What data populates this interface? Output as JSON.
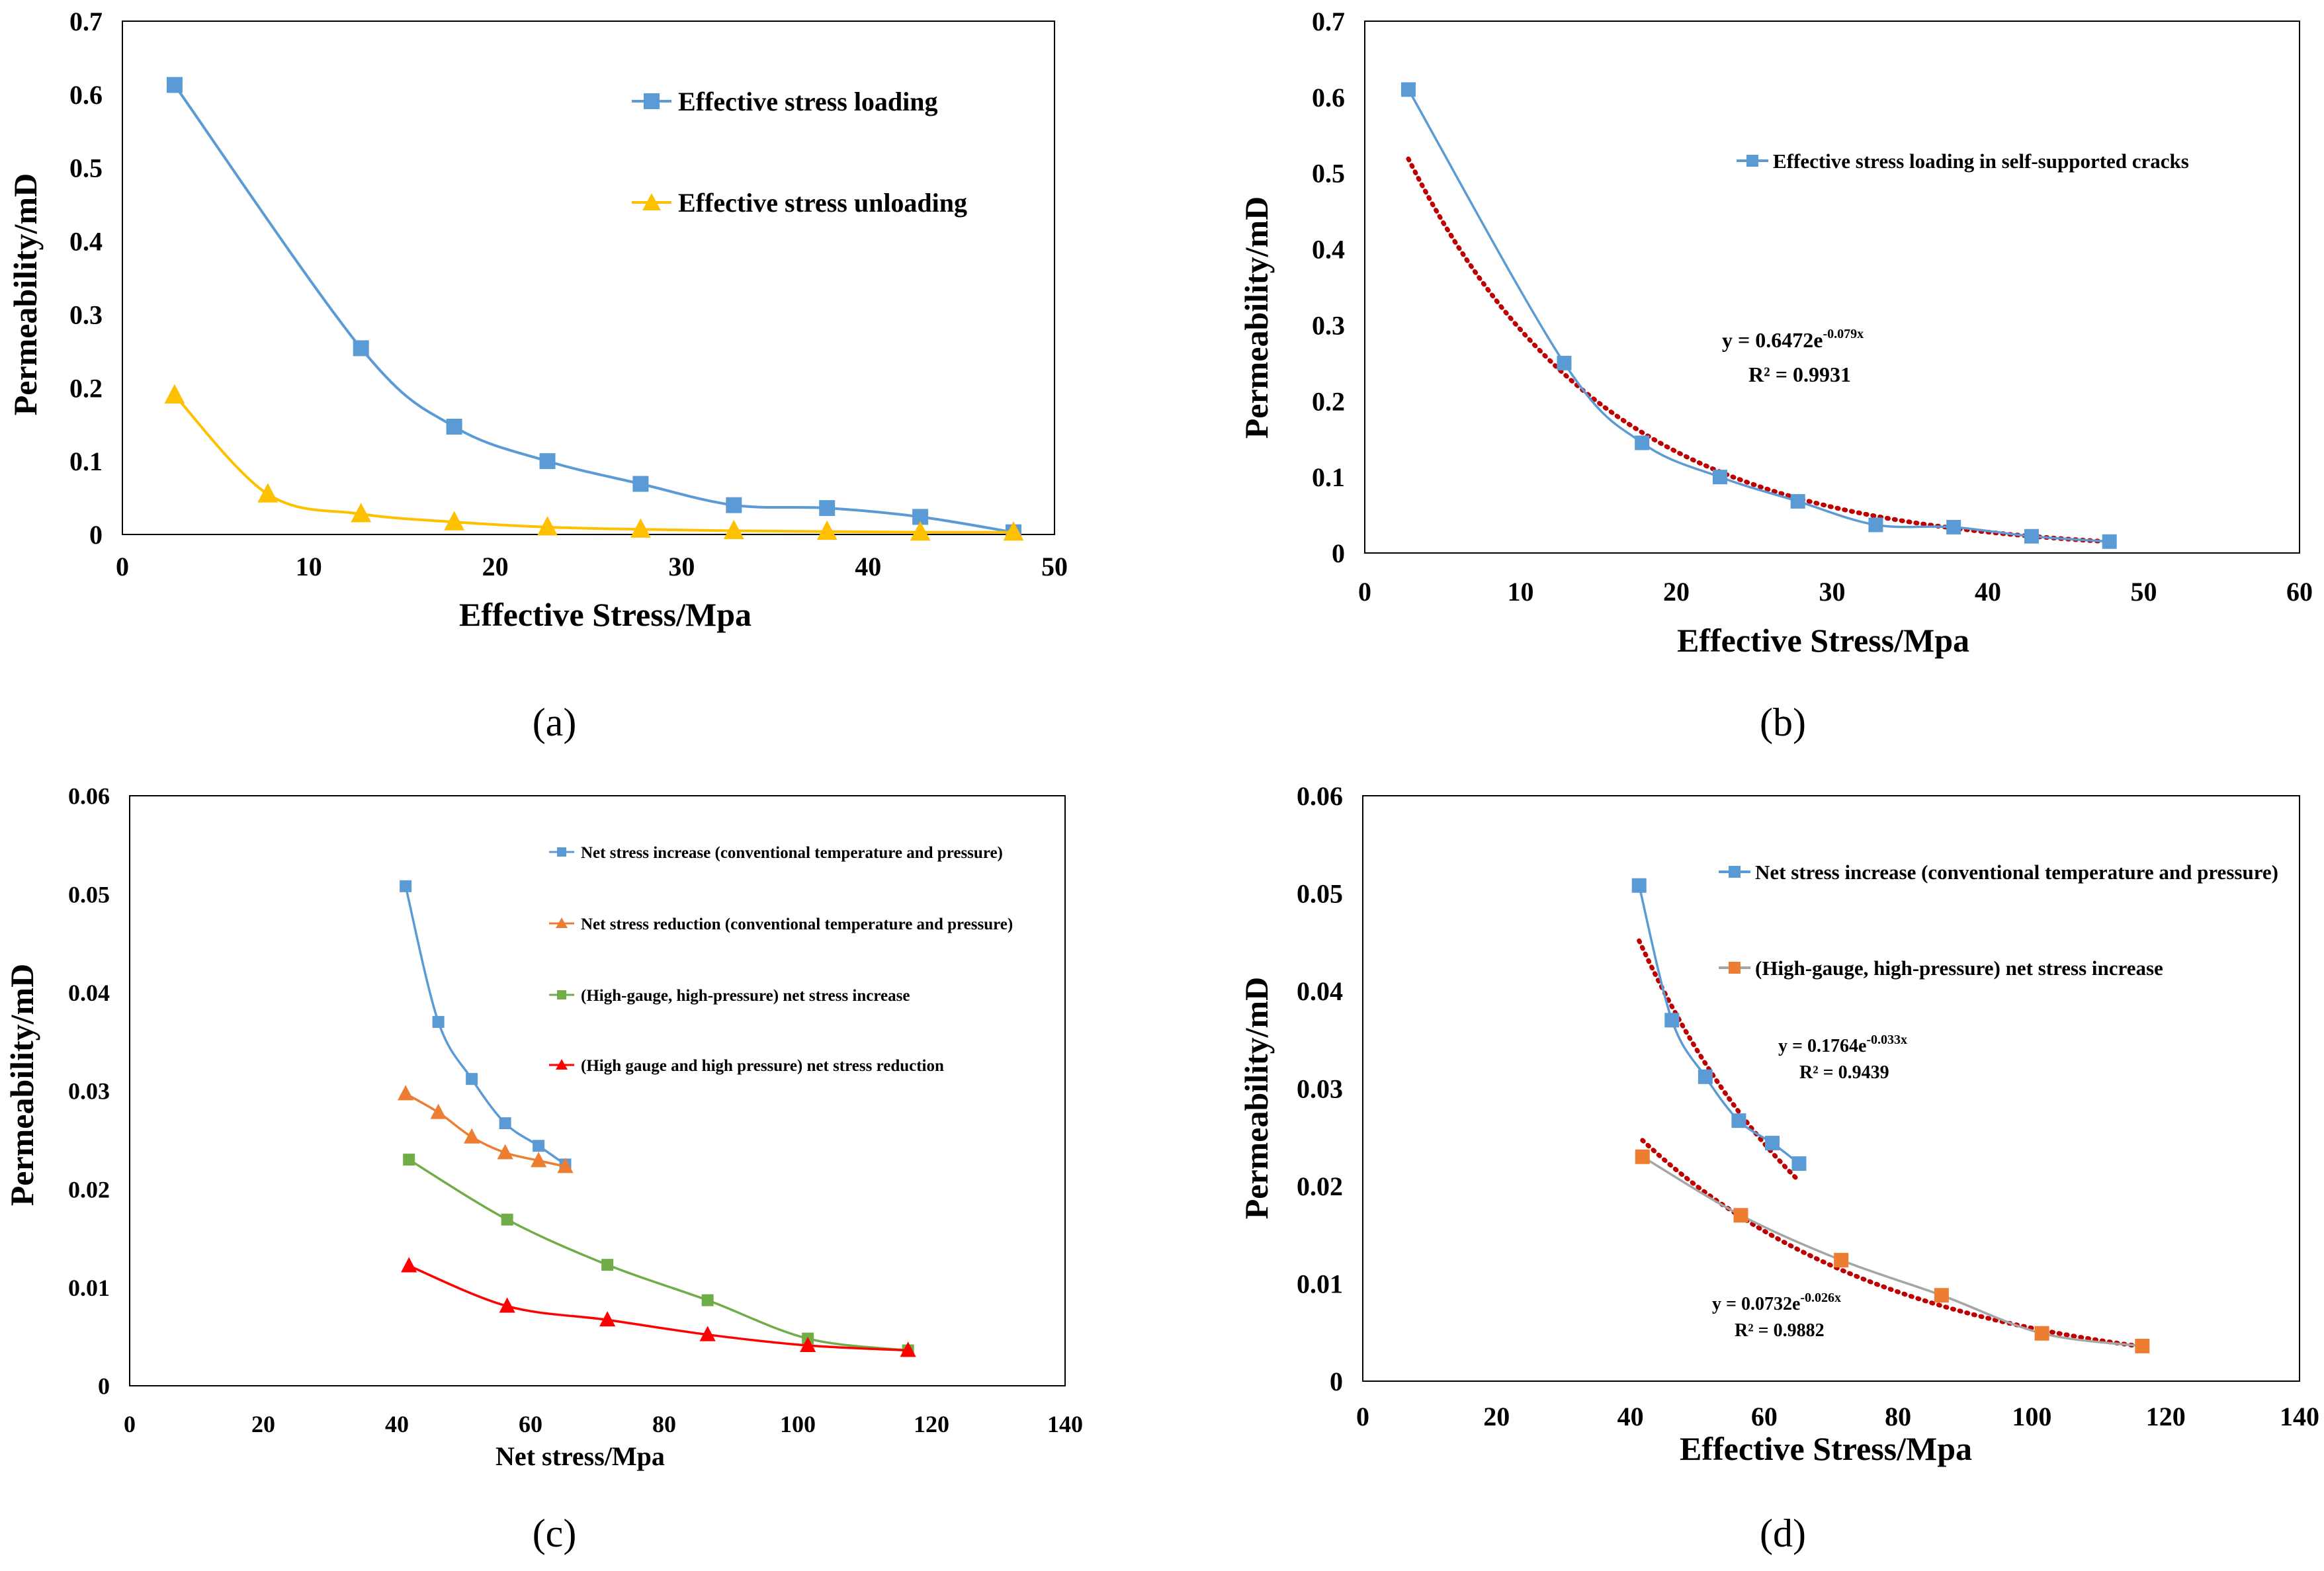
{
  "colors": {
    "blue": "#5B9BD5",
    "orange": "#ED7D31",
    "yellow": "#FFC000",
    "green": "#70AD47",
    "red": "#FF0000",
    "gray": "#A5A5A5",
    "trend": "#C00000",
    "frame": "#000000"
  },
  "chart_data": [
    {
      "id": "a",
      "type": "line",
      "sub_label": "(a)",
      "xlabel": "Effective Stress/Mpa",
      "ylabel": "Permeability/mD",
      "xlim": [
        0,
        50
      ],
      "ylim": [
        0,
        0.7
      ],
      "x_ticks": [
        "0",
        "10",
        "20",
        "30",
        "40",
        "50"
      ],
      "y_ticks": [
        "0",
        "0.1",
        "0.2",
        "0.3",
        "0.4",
        "0.5",
        "0.6",
        "0.7"
      ],
      "series": [
        {
          "name": "Effective stress loading",
          "marker": "square",
          "color": "blue",
          "x": [
            2.8,
            12.8,
            17.8,
            22.8,
            27.8,
            32.8,
            37.8,
            42.8,
            47.8
          ],
          "y": [
            0.613,
            0.254,
            0.147,
            0.1,
            0.069,
            0.04,
            0.036,
            0.024,
            0.003
          ]
        },
        {
          "name": "Effective stress unloading",
          "marker": "triangle",
          "color": "yellow",
          "x": [
            2.8,
            7.8,
            12.8,
            17.8,
            22.8,
            27.8,
            32.8,
            37.8,
            42.8,
            47.8
          ],
          "y": [
            0.19,
            0.055,
            0.028,
            0.017,
            0.01,
            0.007,
            0.005,
            0.004,
            0.003,
            0.003
          ]
        }
      ]
    },
    {
      "id": "b",
      "type": "line",
      "sub_label": "(b)",
      "xlabel": "Effective Stress/Mpa",
      "ylabel": "Permeability/mD",
      "xlim": [
        0,
        60
      ],
      "ylim": [
        0,
        0.7
      ],
      "x_ticks": [
        "0",
        "10",
        "20",
        "30",
        "40",
        "50",
        "60"
      ],
      "y_ticks": [
        "0",
        "0.1",
        "0.2",
        "0.3",
        "0.4",
        "0.5",
        "0.6",
        "0.7"
      ],
      "series": [
        {
          "name": "Effective stress loading in self-supported cracks",
          "marker": "square",
          "color": "blue",
          "x": [
            2.8,
            12.8,
            17.8,
            22.8,
            27.8,
            32.8,
            37.8,
            42.8,
            47.8
          ],
          "y": [
            0.61,
            0.25,
            0.145,
            0.1,
            0.068,
            0.037,
            0.034,
            0.022,
            0.015
          ]
        }
      ],
      "trendlines": [
        {
          "a": 0.6472,
          "b": -0.079,
          "x_range": [
            2.8,
            47.8
          ],
          "equation_prefix": "y = 0.6472e",
          "equation_exp": "-0.079x",
          "r2": "R² = 0.9931"
        }
      ]
    },
    {
      "id": "c",
      "type": "line",
      "sub_label": "(c)",
      "xlabel": "Net stress/Mpa",
      "ylabel": "Permeability/mD",
      "xlim": [
        0,
        140
      ],
      "ylim": [
        0,
        0.06
      ],
      "x_ticks": [
        "0",
        "20",
        "40",
        "60",
        "80",
        "100",
        "120",
        "140"
      ],
      "y_ticks": [
        "0",
        "0.01",
        "0.02",
        "0.03",
        "0.04",
        "0.05",
        "0.06"
      ],
      "series": [
        {
          "name": "Net stress increase (conventional temperature and pressure)",
          "marker": "square",
          "color": "blue",
          "x": [
            41.3,
            46.2,
            51.2,
            56.2,
            61.2,
            65.2
          ],
          "y": [
            0.0508,
            0.037,
            0.0312,
            0.0267,
            0.0244,
            0.0225
          ]
        },
        {
          "name": "Net stress reduction (conventional temperature and pressure)",
          "marker": "triangle",
          "color": "orange",
          "x": [
            41.3,
            46.2,
            51.2,
            56.2,
            61.2,
            65.2
          ],
          "y": [
            0.0297,
            0.0278,
            0.0253,
            0.0237,
            0.0229,
            0.0223
          ]
        },
        {
          "name": "(High-gauge, high-pressure) net stress increase",
          "marker": "square",
          "color": "green",
          "x": [
            41.8,
            56.5,
            71.5,
            86.5,
            101.5,
            116.5
          ],
          "y": [
            0.023,
            0.0169,
            0.0123,
            0.0087,
            0.0048,
            0.0036
          ]
        },
        {
          "name": "(High gauge and high pressure) net stress reduction",
          "marker": "triangle",
          "color": "red",
          "x": [
            41.8,
            56.5,
            71.5,
            86.5,
            101.5,
            116.5
          ],
          "y": [
            0.0122,
            0.0081,
            0.0067,
            0.0052,
            0.0041,
            0.0036
          ]
        }
      ]
    },
    {
      "id": "d",
      "type": "line",
      "sub_label": "(d)",
      "xlabel": "Effective Stress/Mpa",
      "ylabel": "Permeability/mD",
      "xlim": [
        0,
        140
      ],
      "ylim": [
        0,
        0.06
      ],
      "x_ticks": [
        "0",
        "20",
        "40",
        "60",
        "80",
        "100",
        "120",
        "140"
      ],
      "y_ticks": [
        "0",
        "0.01",
        "0.02",
        "0.03",
        "0.04",
        "0.05",
        "0.06"
      ],
      "series": [
        {
          "name": "Net stress increase (conventional temperature and pressure)",
          "marker": "square",
          "color": "blue",
          "x": [
            41.3,
            46.2,
            51.2,
            56.2,
            61.2,
            65.2
          ],
          "y": [
            0.0508,
            0.037,
            0.0312,
            0.0267,
            0.0244,
            0.0223
          ]
        },
        {
          "name": "(High-gauge, high-pressure) net stress increase",
          "marker": "square",
          "color": "orange",
          "line_color": "gray",
          "x": [
            41.8,
            56.5,
            71.5,
            86.5,
            101.5,
            116.5
          ],
          "y": [
            0.023,
            0.017,
            0.0124,
            0.0088,
            0.0049,
            0.0036
          ]
        }
      ],
      "trendlines": [
        {
          "a": 0.1764,
          "b": -0.033,
          "x_range": [
            41.3,
            65.2
          ],
          "equation_prefix": "y = 0.1764e",
          "equation_exp": "-0.033x",
          "r2": "R² = 0.9439"
        },
        {
          "a": 0.0732,
          "b": -0.026,
          "x_range": [
            41.8,
            116.5
          ],
          "equation_prefix": "y = 0.0732e",
          "equation_exp": "-0.026x",
          "r2": "R² = 0.9882"
        }
      ]
    }
  ]
}
